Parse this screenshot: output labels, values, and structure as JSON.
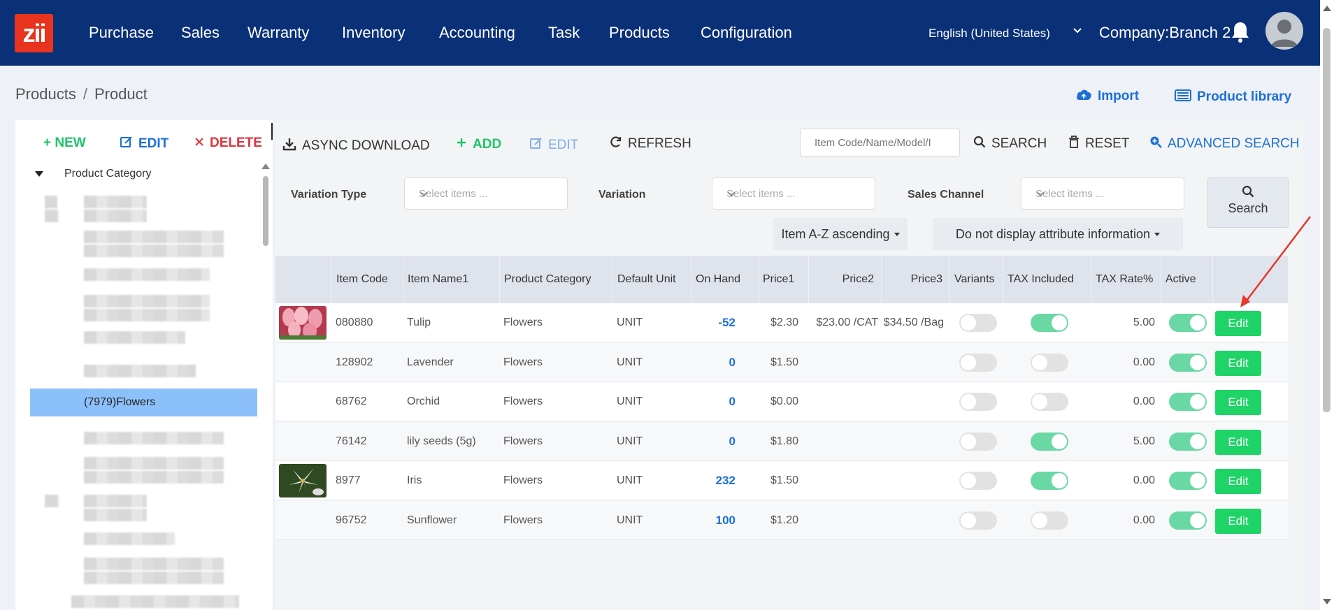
{
  "app": {
    "logo_text": "zii"
  },
  "nav": {
    "items": [
      "Purchase",
      "Sales",
      "Warranty",
      "Inventory",
      "Accounting",
      "Task",
      "Products",
      "Configuration"
    ],
    "language": "English (United States)",
    "company": "Company:Branch 2"
  },
  "breadcrumb": {
    "items": [
      "Products",
      "Product"
    ],
    "separator": "/"
  },
  "top_actions": {
    "import": "Import",
    "library": "Product library"
  },
  "left_panel": {
    "new": "+ NEW",
    "edit": "EDIT",
    "delete": "DELETE",
    "root": "Product Category",
    "selected": "(7979)Flowers"
  },
  "toolbar": {
    "async_download": "ASYNC DOWNLOAD",
    "add": "ADD",
    "edit": "EDIT",
    "refresh": "REFRESH",
    "search_placeholder": "Item Code/Name/Model/I",
    "search": "SEARCH",
    "reset": "RESET",
    "advanced": "ADVANCED SEARCH"
  },
  "filters": {
    "variation_type": "Variation Type",
    "variation": "Variation",
    "sales_channel": "Sales Channel",
    "placeholder": "Select items ...",
    "search": "Search",
    "sort": "Item A-Z ascending",
    "attr": "Do not display attribute information"
  },
  "table": {
    "columns": [
      "Item Code",
      "Item Name1",
      "Product Category",
      "Default Unit",
      "On Hand",
      "Price1",
      "Price2",
      "Price3",
      "Variants",
      "TAX Included",
      "TAX Rate%",
      "Active"
    ],
    "edit_label": "Edit",
    "rows": [
      {
        "code": "080880",
        "name": "Tulip",
        "category": "Flowers",
        "unit": "UNIT",
        "on_hand": "-52",
        "price1": "$2.30",
        "price2": "$23.00 /CAT",
        "price3": "$34.50 /Bag",
        "variants": false,
        "tax_included": true,
        "tax_rate": "5.00",
        "active": true,
        "image": "tulip"
      },
      {
        "code": "128902",
        "name": "Lavender",
        "category": "Flowers",
        "unit": "UNIT",
        "on_hand": "0",
        "price1": "$1.50",
        "price2": "",
        "price3": "",
        "variants": false,
        "tax_included": false,
        "tax_rate": "0.00",
        "active": true,
        "image": ""
      },
      {
        "code": "68762",
        "name": "Orchid",
        "category": "Flowers",
        "unit": "UNIT",
        "on_hand": "0",
        "price1": "$0.00",
        "price2": "",
        "price3": "",
        "variants": false,
        "tax_included": false,
        "tax_rate": "0.00",
        "active": true,
        "image": ""
      },
      {
        "code": "76142",
        "name": "lily seeds (5g)",
        "category": "Flowers",
        "unit": "UNIT",
        "on_hand": "0",
        "price1": "$1.80",
        "price2": "",
        "price3": "",
        "variants": false,
        "tax_included": true,
        "tax_rate": "5.00",
        "active": true,
        "image": ""
      },
      {
        "code": "8977",
        "name": "Iris",
        "category": "Flowers",
        "unit": "UNIT",
        "on_hand": "232",
        "price1": "$1.50",
        "price2": "",
        "price3": "",
        "variants": false,
        "tax_included": true,
        "tax_rate": "0.00",
        "active": true,
        "image": "lily"
      },
      {
        "code": "96752",
        "name": "Sunflower",
        "category": "Flowers",
        "unit": "UNIT",
        "on_hand": "100",
        "price1": "$1.20",
        "price2": "",
        "price3": "",
        "variants": false,
        "tax_included": false,
        "tax_rate": "0.00",
        "active": true,
        "image": ""
      }
    ]
  },
  "colors": {
    "nav_bg": "#0a3178",
    "accent_blue": "#1a6fd8",
    "green": "#1ed466",
    "toggle_on": "#6ad8a4",
    "delete_red": "#e0323c",
    "selected_row": "#8cc0fa"
  }
}
